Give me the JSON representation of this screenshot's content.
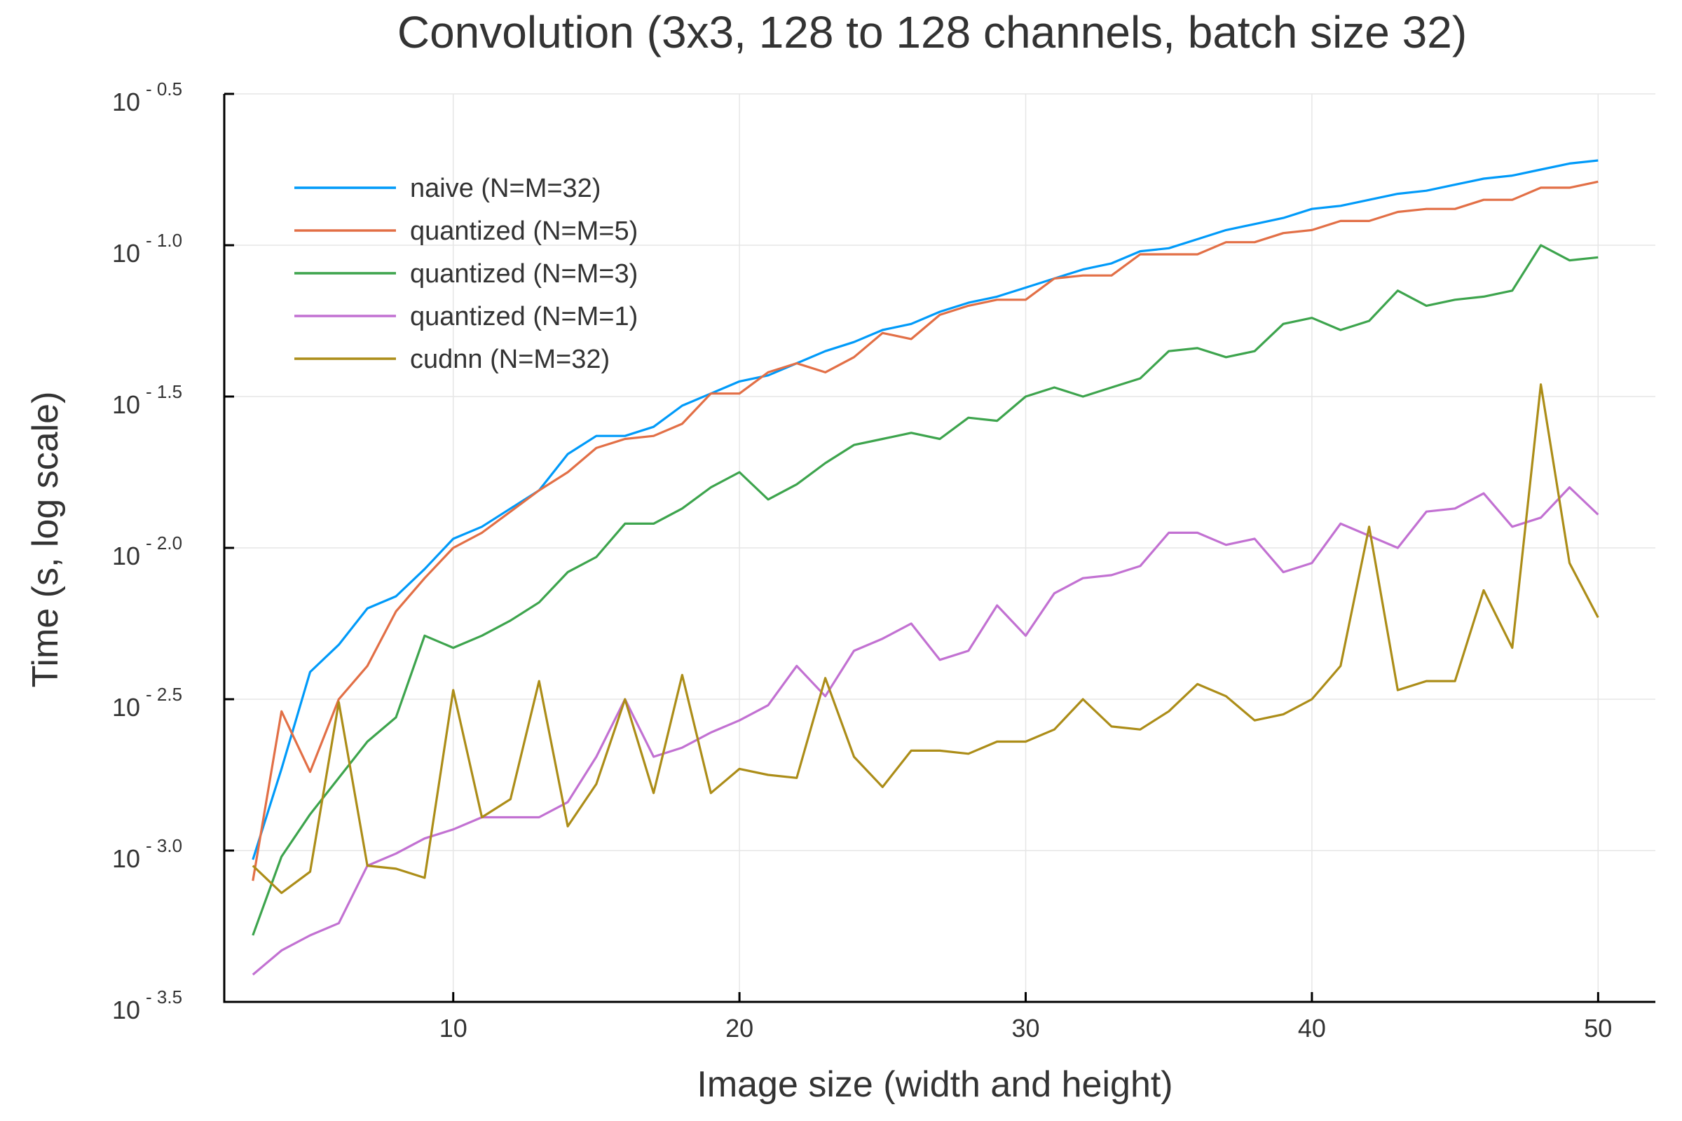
{
  "chart_data": {
    "type": "line",
    "title": "Convolution (3x3, 128 to 128 channels, batch size 32)",
    "xlabel": "Image size (width and height)",
    "ylabel": "Time (s, log scale)",
    "yscale": "log10",
    "xlim": [
      2,
      52
    ],
    "ylim": [
      -3.5,
      -0.5
    ],
    "x_ticks": [
      10,
      20,
      30,
      40,
      50
    ],
    "y_ticks": [
      {
        "base": "10",
        "exp": "- 0.5",
        "value": -0.5
      },
      {
        "base": "10",
        "exp": "- 1.0",
        "value": -1.0
      },
      {
        "base": "10",
        "exp": "- 1.5",
        "value": -1.5
      },
      {
        "base": "10",
        "exp": "- 2.0",
        "value": -2.0
      },
      {
        "base": "10",
        "exp": "- 2.5",
        "value": -2.5
      },
      {
        "base": "10",
        "exp": "- 3.0",
        "value": -3.0
      },
      {
        "base": "10",
        "exp": "- 3.5",
        "value": -3.5
      }
    ],
    "grid": true,
    "legend_position": "top-left",
    "x": [
      3,
      4,
      5,
      6,
      7,
      8,
      9,
      10,
      11,
      12,
      13,
      14,
      15,
      16,
      17,
      18,
      19,
      20,
      21,
      22,
      23,
      24,
      25,
      26,
      27,
      28,
      29,
      30,
      31,
      32,
      33,
      34,
      35,
      36,
      37,
      38,
      39,
      40,
      41,
      42,
      43,
      44,
      45,
      46,
      47,
      48,
      49,
      50
    ],
    "series": [
      {
        "name": "naive (N=M=32)",
        "color": "#009af9",
        "log10_values": [
          -3.03,
          -2.73,
          -2.41,
          -2.32,
          -2.2,
          -2.16,
          -2.07,
          -1.97,
          -1.93,
          -1.87,
          -1.81,
          -1.69,
          -1.63,
          -1.63,
          -1.6,
          -1.53,
          -1.49,
          -1.45,
          -1.43,
          -1.39,
          -1.35,
          -1.32,
          -1.28,
          -1.26,
          -1.22,
          -1.19,
          -1.17,
          -1.14,
          -1.11,
          -1.08,
          -1.06,
          -1.02,
          -1.01,
          -0.98,
          -0.95,
          -0.93,
          -0.91,
          -0.88,
          -0.87,
          -0.85,
          -0.83,
          -0.82,
          -0.8,
          -0.78,
          -0.77,
          -0.75,
          -0.73,
          -0.72
        ]
      },
      {
        "name": "quantized (N=M=5)",
        "color": "#e26f46",
        "log10_values": [
          -3.1,
          -2.54,
          -2.74,
          -2.5,
          -2.39,
          -2.21,
          -2.1,
          -2.0,
          -1.95,
          -1.88,
          -1.81,
          -1.75,
          -1.67,
          -1.64,
          -1.63,
          -1.59,
          -1.49,
          -1.49,
          -1.42,
          -1.39,
          -1.42,
          -1.37,
          -1.29,
          -1.31,
          -1.23,
          -1.2,
          -1.18,
          -1.18,
          -1.11,
          -1.1,
          -1.1,
          -1.03,
          -1.03,
          -1.03,
          -0.99,
          -0.99,
          -0.96,
          -0.95,
          -0.92,
          -0.92,
          -0.89,
          -0.88,
          -0.88,
          -0.85,
          -0.85,
          -0.81,
          -0.81,
          -0.79
        ]
      },
      {
        "name": "quantized (N=M=3)",
        "color": "#3da44d",
        "log10_values": [
          -3.28,
          -3.02,
          -2.88,
          -2.76,
          -2.64,
          -2.56,
          -2.29,
          -2.33,
          -2.29,
          -2.24,
          -2.18,
          -2.08,
          -2.03,
          -1.92,
          -1.92,
          -1.87,
          -1.8,
          -1.75,
          -1.84,
          -1.79,
          -1.72,
          -1.66,
          -1.64,
          -1.62,
          -1.64,
          -1.57,
          -1.58,
          -1.5,
          -1.47,
          -1.5,
          -1.47,
          -1.44,
          -1.35,
          -1.34,
          -1.37,
          -1.35,
          -1.26,
          -1.24,
          -1.28,
          -1.25,
          -1.15,
          -1.2,
          -1.18,
          -1.17,
          -1.15,
          -1.0,
          -1.05,
          -1.04
        ]
      },
      {
        "name": "quantized (N=M=1)",
        "color": "#c271d2",
        "log10_values": [
          -3.41,
          -3.33,
          -3.28,
          -3.24,
          -3.05,
          -3.01,
          -2.96,
          -2.93,
          -2.89,
          -2.89,
          -2.89,
          -2.84,
          -2.69,
          -2.5,
          -2.69,
          -2.66,
          -2.61,
          -2.57,
          -2.52,
          -2.39,
          -2.49,
          -2.34,
          -2.3,
          -2.25,
          -2.37,
          -2.34,
          -2.19,
          -2.29,
          -2.15,
          -2.1,
          -2.09,
          -2.06,
          -1.95,
          -1.95,
          -1.99,
          -1.97,
          -2.08,
          -2.05,
          -1.92,
          -1.96,
          -2.0,
          -1.88,
          -1.87,
          -1.82,
          -1.93,
          -1.9,
          -1.8,
          -1.89
        ]
      },
      {
        "name": "cudnn (N=M=32)",
        "color": "#ac8d18",
        "log10_values": [
          -3.05,
          -3.14,
          -3.07,
          -2.51,
          -3.05,
          -3.06,
          -3.09,
          -2.47,
          -2.89,
          -2.83,
          -2.44,
          -2.92,
          -2.78,
          -2.5,
          -2.81,
          -2.42,
          -2.81,
          -2.73,
          -2.75,
          -2.76,
          -2.43,
          -2.69,
          -2.79,
          -2.67,
          -2.67,
          -2.68,
          -2.64,
          -2.64,
          -2.6,
          -2.5,
          -2.59,
          -2.6,
          -2.54,
          -2.45,
          -2.49,
          -2.57,
          -2.55,
          -2.5,
          -2.39,
          -1.93,
          -2.47,
          -2.44,
          -2.44,
          -2.14,
          -2.33,
          -1.46,
          -2.05,
          -2.23
        ]
      }
    ]
  }
}
